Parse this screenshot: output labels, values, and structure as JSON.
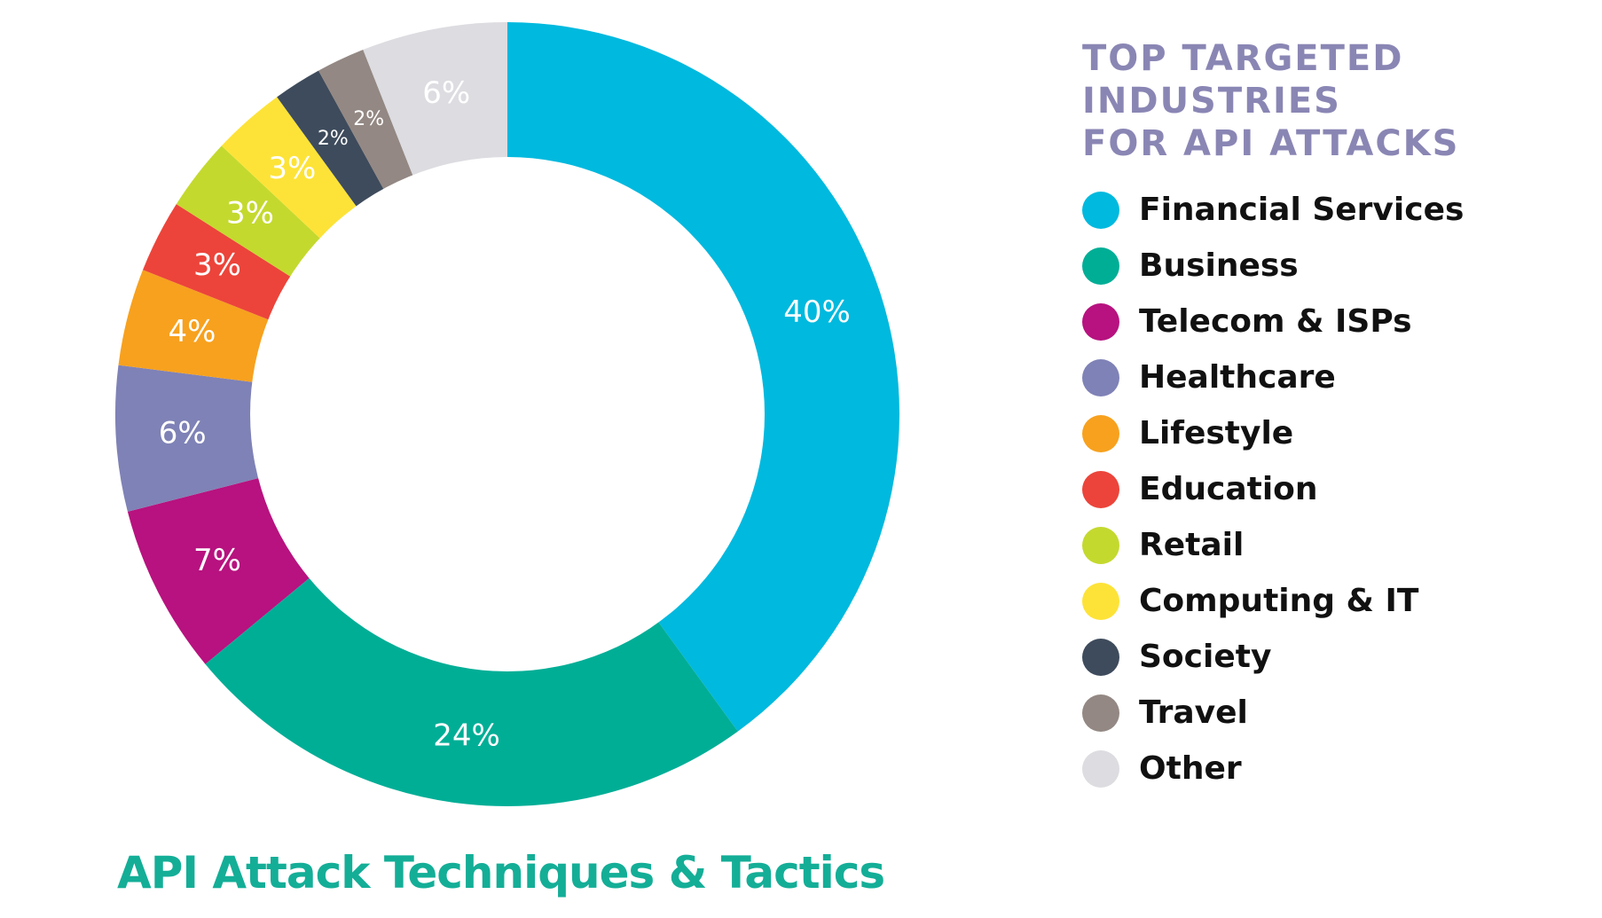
{
  "chart_data": {
    "type": "pie",
    "variant": "donut",
    "title": "API Attack Techniques & Tactics",
    "legend_title": "TOP TARGETED INDUSTRIES\nFOR API ATTACKS",
    "legend_position": "right",
    "slices": [
      {
        "name": "Financial Services",
        "value": 40,
        "label": "40%",
        "color": "#00b9de"
      },
      {
        "name": "Business",
        "value": 24,
        "label": "24%",
        "color": "#00ae96"
      },
      {
        "name": "Telecom & ISPs",
        "value": 7,
        "label": "7%",
        "color": "#b7127f"
      },
      {
        "name": "Healthcare",
        "value": 6,
        "label": "6%",
        "color": "#7f82b6"
      },
      {
        "name": "Lifestyle",
        "value": 4,
        "label": "4%",
        "color": "#f7a11e"
      },
      {
        "name": "Education",
        "value": 3,
        "label": "3%",
        "color": "#ec443a"
      },
      {
        "name": "Retail",
        "value": 3,
        "label": "3%",
        "color": "#c4d92e"
      },
      {
        "name": "Computing & IT",
        "value": 3,
        "label": "3%",
        "color": "#fde337"
      },
      {
        "name": "Society",
        "value": 2,
        "label": "2%",
        "color": "#3e4b5c"
      },
      {
        "name": "Travel",
        "value": 2,
        "label": "2%",
        "color": "#938883"
      },
      {
        "name": "Other",
        "value": 6,
        "label": "6%",
        "color": "#dcdce1"
      }
    ]
  }
}
